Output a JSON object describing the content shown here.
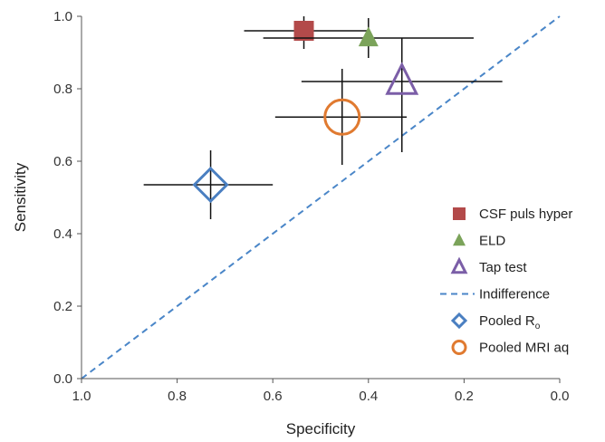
{
  "chart_data": {
    "type": "scatter",
    "title": "",
    "xlabel": "Specificity",
    "ylabel": "Sensitivity",
    "x_reversed": true,
    "xlim": [
      1.0,
      0.0
    ],
    "ylim": [
      0.0,
      1.0
    ],
    "x_ticks": [
      "1.0",
      "0.8",
      "0.6",
      "0.4",
      "0.2",
      "0.0"
    ],
    "y_ticks": [
      "0.0",
      "0.2",
      "0.4",
      "0.6",
      "0.8",
      "1.0"
    ],
    "grid": false,
    "legend_position": "bottom-right",
    "series": [
      {
        "name": "CSF puls hyper",
        "marker": "square-filled",
        "color": "#b34a4a",
        "x": 0.535,
        "y": 0.96,
        "x_err": [
          0.66,
          0.4
        ],
        "y_err": [
          0.91,
          1.0
        ]
      },
      {
        "name": "ELD",
        "marker": "triangle-filled",
        "color": "#7ba35a",
        "x": 0.4,
        "y": 0.94,
        "x_err": [
          0.62,
          0.18
        ],
        "y_err": [
          0.885,
          0.995
        ]
      },
      {
        "name": "Tap test",
        "marker": "triangle-open",
        "color": "#7b5ea7",
        "x": 0.33,
        "y": 0.82,
        "x_err": [
          0.54,
          0.12
        ],
        "y_err": [
          0.625,
          0.94
        ]
      },
      {
        "name": "Pooled R",
        "name_subscript": "o",
        "marker": "diamond-open",
        "color": "#4a7fc1",
        "x": 0.73,
        "y": 0.535,
        "x_err": [
          0.87,
          0.6
        ],
        "y_err": [
          0.44,
          0.63
        ]
      },
      {
        "name": "Pooled MRI aq",
        "marker": "circle-open",
        "color": "#e07a30",
        "x": 0.455,
        "y": 0.722,
        "x_err": [
          0.595,
          0.32
        ],
        "y_err": [
          0.59,
          0.855
        ]
      }
    ],
    "reference_line": {
      "name": "Indifference",
      "style": "dashed",
      "color": "#4a86c8",
      "from": [
        1.0,
        0.0
      ],
      "to": [
        0.0,
        1.0
      ]
    }
  }
}
